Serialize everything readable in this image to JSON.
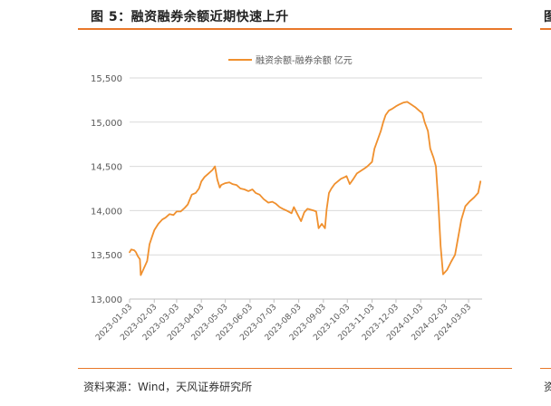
{
  "figure": {
    "title": "图 5：融资融券余额近期快速上升",
    "source": "资料来源：Wind，天风证券研究所",
    "next_panel_title_char": "图",
    "next_panel_source_char": "资"
  },
  "colors": {
    "accent": "#e8782a",
    "line": "#f0902e",
    "grid": "#d9d9d9",
    "axis_text": "#595959"
  },
  "chart_data": {
    "type": "line",
    "title": "",
    "xlabel": "",
    "ylabel": "",
    "ylim": [
      13000,
      15500
    ],
    "yticks": [
      13000,
      13500,
      14000,
      14500,
      15000,
      15500
    ],
    "ytick_labels": [
      "13,000",
      "13,500",
      "14,000",
      "14,500",
      "15,000",
      "15,500"
    ],
    "xtick_labels": [
      "2023-01-03",
      "2023-02-03",
      "2023-03-03",
      "2023-04-03",
      "2023-05-03",
      "2023-06-03",
      "2023-07-03",
      "2023-08-03",
      "2023-09-03",
      "2023-10-03",
      "2023-11-03",
      "2023-12-03",
      "2024-01-03",
      "2024-02-03",
      "2024-03-03"
    ],
    "xlim": [
      "2023-01-03",
      "2024-03-20"
    ],
    "grid": "horizontal",
    "legend_position": "top",
    "series": [
      {
        "name": "融资余额-融券余额 亿元",
        "points": [
          [
            "2023-01-03",
            13530
          ],
          [
            "2023-01-05",
            13560
          ],
          [
            "2023-01-09",
            13550
          ],
          [
            "2023-01-11",
            13530
          ],
          [
            "2023-01-13",
            13490
          ],
          [
            "2023-01-16",
            13450
          ],
          [
            "2023-01-17",
            13270
          ],
          [
            "2023-01-20",
            13330
          ],
          [
            "2023-01-25",
            13430
          ],
          [
            "2023-01-28",
            13620
          ],
          [
            "2023-01-31",
            13700
          ],
          [
            "2023-02-03",
            13780
          ],
          [
            "2023-02-08",
            13850
          ],
          [
            "2023-02-13",
            13900
          ],
          [
            "2023-02-17",
            13920
          ],
          [
            "2023-02-22",
            13960
          ],
          [
            "2023-02-27",
            13950
          ],
          [
            "2023-03-03",
            13990
          ],
          [
            "2023-03-08",
            13990
          ],
          [
            "2023-03-13",
            14030
          ],
          [
            "2023-03-17",
            14070
          ],
          [
            "2023-03-22",
            14180
          ],
          [
            "2023-03-27",
            14200
          ],
          [
            "2023-03-31",
            14250
          ],
          [
            "2023-04-03",
            14330
          ],
          [
            "2023-04-07",
            14380
          ],
          [
            "2023-04-12",
            14420
          ],
          [
            "2023-04-17",
            14460
          ],
          [
            "2023-04-20",
            14500
          ],
          [
            "2023-04-23",
            14350
          ],
          [
            "2023-04-26",
            14260
          ],
          [
            "2023-04-28",
            14290
          ],
          [
            "2023-05-03",
            14310
          ],
          [
            "2023-05-08",
            14320
          ],
          [
            "2023-05-12",
            14300
          ],
          [
            "2023-05-17",
            14290
          ],
          [
            "2023-05-22",
            14250
          ],
          [
            "2023-05-27",
            14240
          ],
          [
            "2023-06-01",
            14220
          ],
          [
            "2023-06-06",
            14240
          ],
          [
            "2023-06-10",
            14200
          ],
          [
            "2023-06-15",
            14180
          ],
          [
            "2023-06-20",
            14130
          ],
          [
            "2023-06-26",
            14090
          ],
          [
            "2023-07-01",
            14100
          ],
          [
            "2023-07-05",
            14080
          ],
          [
            "2023-07-10",
            14040
          ],
          [
            "2023-07-14",
            14020
          ],
          [
            "2023-07-19",
            14000
          ],
          [
            "2023-07-25",
            13970
          ],
          [
            "2023-07-28",
            14040
          ],
          [
            "2023-08-02",
            13950
          ],
          [
            "2023-08-06",
            13880
          ],
          [
            "2023-08-10",
            13980
          ],
          [
            "2023-08-14",
            14020
          ],
          [
            "2023-08-18",
            14010
          ],
          [
            "2023-08-22",
            14000
          ],
          [
            "2023-08-25",
            13990
          ],
          [
            "2023-08-28",
            13800
          ],
          [
            "2023-09-01",
            13850
          ],
          [
            "2023-09-05",
            13800
          ],
          [
            "2023-09-07",
            14010
          ],
          [
            "2023-09-10",
            14200
          ],
          [
            "2023-09-13",
            14250
          ],
          [
            "2023-09-17",
            14300
          ],
          [
            "2023-09-21",
            14330
          ],
          [
            "2023-09-25",
            14360
          ],
          [
            "2023-09-30",
            14380
          ],
          [
            "2023-10-02",
            14390
          ],
          [
            "2023-10-06",
            14300
          ],
          [
            "2023-10-10",
            14350
          ],
          [
            "2023-10-15",
            14420
          ],
          [
            "2023-10-20",
            14450
          ],
          [
            "2023-10-25",
            14480
          ],
          [
            "2023-10-28",
            14500
          ],
          [
            "2023-11-03",
            14550
          ],
          [
            "2023-11-06",
            14700
          ],
          [
            "2023-11-10",
            14800
          ],
          [
            "2023-11-14",
            14900
          ],
          [
            "2023-11-17",
            15000
          ],
          [
            "2023-11-20",
            15080
          ],
          [
            "2023-11-24",
            15130
          ],
          [
            "2023-11-28",
            15150
          ],
          [
            "2023-12-03",
            15180
          ],
          [
            "2023-12-07",
            15200
          ],
          [
            "2023-12-12",
            15220
          ],
          [
            "2023-12-17",
            15230
          ],
          [
            "2023-12-22",
            15200
          ],
          [
            "2023-12-27",
            15170
          ],
          [
            "2024-01-01",
            15130
          ],
          [
            "2024-01-05",
            15100
          ],
          [
            "2024-01-08",
            15000
          ],
          [
            "2024-01-12",
            14900
          ],
          [
            "2024-01-15",
            14700
          ],
          [
            "2024-01-19",
            14600
          ],
          [
            "2024-01-22",
            14500
          ],
          [
            "2024-01-25",
            14100
          ],
          [
            "2024-01-28",
            13600
          ],
          [
            "2024-01-31",
            13280
          ],
          [
            "2024-02-05",
            13330
          ],
          [
            "2024-02-10",
            13420
          ],
          [
            "2024-02-15",
            13500
          ],
          [
            "2024-02-19",
            13700
          ],
          [
            "2024-02-23",
            13900
          ],
          [
            "2024-02-28",
            14050
          ],
          [
            "2024-03-04",
            14100
          ],
          [
            "2024-03-10",
            14150
          ],
          [
            "2024-03-15",
            14200
          ],
          [
            "2024-03-18",
            14330
          ]
        ]
      }
    ]
  }
}
